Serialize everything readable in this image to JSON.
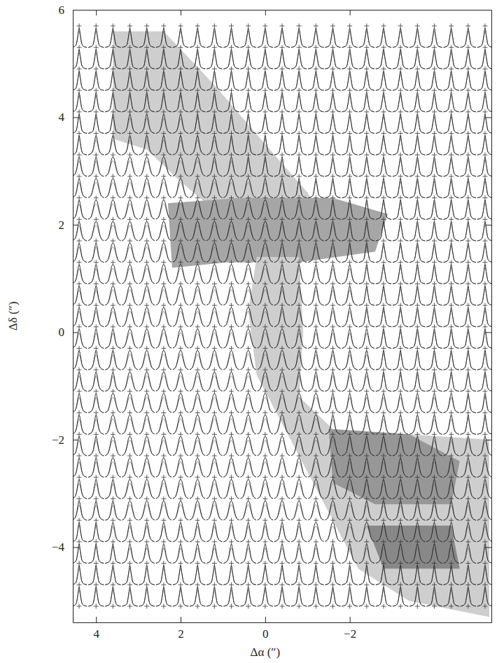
{
  "chart_data": {
    "type": "spectra",
    "x_label": "Δα (″)",
    "y_label": "Δδ (″)",
    "xlim": [
      4.55,
      -5.35
    ],
    "ylim": [
      -5.4,
      6.0
    ],
    "xticks": [
      4,
      2,
      0,
      {
        "value": -2,
        "label": "−2"
      }
    ],
    "yticks": [
      {
        "value": -4,
        "label": "−4"
      },
      {
        "value": -2,
        "label": "−2"
      },
      0,
      2,
      4,
      6
    ],
    "regions": [
      {
        "level": 0.3,
        "points": [
          [
            3.6,
            5.6
          ],
          [
            2.4,
            5.6
          ],
          [
            1.2,
            4.6
          ],
          [
            0.0,
            3.5
          ],
          [
            -1.0,
            2.6
          ],
          [
            -1.4,
            2.0
          ],
          [
            -0.6,
            1.6
          ],
          [
            0.8,
            2.0
          ],
          [
            2.0,
            2.8
          ],
          [
            2.8,
            3.4
          ],
          [
            3.6,
            3.6
          ]
        ]
      },
      {
        "level": 0.45,
        "points": [
          [
            2.3,
            2.4
          ],
          [
            0.6,
            2.5
          ],
          [
            -1.6,
            2.5
          ],
          [
            -2.9,
            2.2
          ],
          [
            -2.6,
            1.5
          ],
          [
            -0.8,
            1.3
          ],
          [
            0.9,
            1.3
          ],
          [
            2.2,
            1.2
          ]
        ]
      },
      {
        "level": 0.3,
        "points": [
          [
            0.2,
            1.4
          ],
          [
            -0.8,
            1.4
          ],
          [
            -0.9,
            0.0
          ],
          [
            -0.8,
            -1.2
          ],
          [
            -1.6,
            -1.8
          ],
          [
            -5.3,
            -2.0
          ],
          [
            -5.3,
            -5.3
          ],
          [
            -3.4,
            -5.0
          ],
          [
            -2.2,
            -4.4
          ],
          [
            -1.4,
            -3.2
          ],
          [
            -0.6,
            -2.0
          ],
          [
            0.2,
            -0.8
          ],
          [
            0.4,
            0.4
          ]
        ]
      },
      {
        "level": 0.5,
        "points": [
          [
            -1.5,
            -1.8
          ],
          [
            -3.4,
            -1.9
          ],
          [
            -4.6,
            -2.4
          ],
          [
            -4.4,
            -3.2
          ],
          [
            -2.6,
            -3.2
          ],
          [
            -1.6,
            -2.8
          ]
        ]
      },
      {
        "level": 0.55,
        "points": [
          [
            -2.4,
            -3.6
          ],
          [
            -4.4,
            -3.6
          ],
          [
            -4.6,
            -4.4
          ],
          [
            -2.8,
            -4.4
          ]
        ]
      }
    ],
    "spectra": {
      "x": [
        4.4,
        4.0,
        3.6,
        3.2,
        2.8,
        2.4,
        2.0,
        1.6,
        1.2,
        0.8,
        0.4,
        0.0,
        -0.4,
        -0.8,
        -1.2,
        -1.6,
        -2.0,
        -2.4,
        -2.8,
        -3.2,
        -3.6,
        -4.0,
        -4.4,
        -4.8,
        -5.2
      ],
      "y": [
        5.7,
        5.3,
        4.9,
        4.5,
        4.1,
        3.7,
        3.3,
        2.9,
        2.5,
        2.1,
        1.7,
        1.3,
        0.9,
        0.5,
        0.1,
        -0.3,
        -0.7,
        -1.1,
        -1.5,
        -1.9,
        -2.3,
        -2.7,
        -3.1,
        -3.5,
        -3.9,
        -4.3,
        -4.7,
        -5.1
      ],
      "profiles": [
        [
          0,
          0.02,
          0.04,
          0.08,
          0.2,
          0.6,
          1,
          0.6,
          0.2,
          0.08,
          0.04,
          0.02,
          0
        ],
        [
          0,
          0.03,
          0.07,
          0.15,
          0.35,
          0.75,
          1,
          0.75,
          0.35,
          0.15,
          0.07,
          0.03,
          0
        ],
        [
          0.02,
          0.05,
          0.12,
          0.3,
          0.6,
          0.9,
          1,
          0.9,
          0.6,
          0.3,
          0.12,
          0.05,
          0.02
        ]
      ],
      "model_profiles": [
        [
          0,
          0.01,
          0.03,
          0.07,
          0.2,
          0.55,
          0.85,
          0.55,
          0.2,
          0.07,
          0.03,
          0.01,
          0
        ],
        [
          0,
          0.02,
          0.05,
          0.12,
          0.3,
          0.6,
          0.8,
          0.6,
          0.3,
          0.12,
          0.05,
          0.02,
          0
        ],
        [
          0.01,
          0.04,
          0.1,
          0.25,
          0.5,
          0.72,
          0.8,
          0.72,
          0.5,
          0.25,
          0.1,
          0.04,
          0.01
        ]
      ],
      "grid": [
        [
          null,
          null,
          null,
          null,
          null,
          null,
          null,
          null,
          null,
          null,
          null,
          null,
          null,
          null,
          null,
          null,
          null,
          null,
          null,
          null,
          null,
          null,
          null,
          null,
          null
        ],
        [
          0,
          0,
          0,
          0,
          0,
          0,
          0,
          0,
          0,
          0,
          0,
          0,
          0,
          0,
          0,
          0,
          0,
          0,
          0,
          0,
          0,
          0,
          0,
          0,
          0
        ],
        [
          0,
          0,
          0,
          0,
          0,
          0,
          0,
          0,
          0,
          0,
          0,
          0,
          0,
          0,
          0,
          0,
          0,
          0,
          0,
          0,
          0,
          0,
          0,
          0,
          0
        ],
        [
          0,
          0,
          0,
          0,
          0,
          0,
          0,
          0,
          0,
          0,
          0,
          0,
          0,
          0,
          0,
          0,
          0,
          0,
          0,
          0,
          0,
          0,
          0,
          0,
          0
        ],
        [
          0,
          0,
          0,
          0,
          0,
          0,
          0,
          0,
          0,
          0,
          0,
          0,
          0,
          0,
          0,
          0,
          0,
          0,
          0,
          0,
          0,
          0,
          0,
          0,
          0
        ],
        [
          0,
          0,
          0,
          1,
          1,
          1,
          1,
          0,
          0,
          0,
          0,
          0,
          0,
          0,
          0,
          0,
          0,
          0,
          0,
          0,
          0,
          0,
          0,
          0,
          0
        ],
        [
          0,
          1,
          1,
          1,
          1,
          1,
          1,
          1,
          1,
          0,
          0,
          0,
          0,
          0,
          0,
          0,
          0,
          0,
          0,
          0,
          0,
          0,
          0,
          0,
          0
        ],
        [
          1,
          1,
          2,
          2,
          2,
          2,
          2,
          2,
          1,
          1,
          0,
          0,
          0,
          0,
          0,
          0,
          0,
          0,
          0,
          0,
          0,
          0,
          0,
          0,
          0
        ],
        [
          1,
          2,
          2,
          2,
          2,
          2,
          2,
          2,
          2,
          2,
          2,
          1,
          1,
          0,
          0,
          0,
          0,
          0,
          0,
          0,
          0,
          0,
          0,
          0,
          0
        ],
        [
          1,
          2,
          2,
          2,
          2,
          2,
          2,
          2,
          2,
          2,
          2,
          2,
          1,
          1,
          1,
          0,
          0,
          0,
          0,
          0,
          0,
          0,
          0,
          0,
          0
        ],
        [
          1,
          2,
          2,
          2,
          2,
          2,
          2,
          2,
          2,
          2,
          2,
          2,
          1,
          1,
          1,
          1,
          0,
          0,
          0,
          0,
          0,
          0,
          0,
          0,
          0
        ],
        [
          1,
          1,
          2,
          2,
          2,
          2,
          2,
          2,
          2,
          2,
          2,
          2,
          1,
          1,
          1,
          1,
          0,
          0,
          0,
          0,
          0,
          0,
          0,
          0,
          0
        ],
        [
          1,
          1,
          2,
          2,
          2,
          2,
          2,
          2,
          2,
          2,
          2,
          2,
          1,
          1,
          1,
          1,
          1,
          0,
          0,
          0,
          0,
          0,
          0,
          0,
          0
        ],
        [
          1,
          1,
          2,
          2,
          2,
          2,
          2,
          2,
          2,
          2,
          2,
          2,
          1,
          1,
          1,
          1,
          1,
          0,
          0,
          0,
          0,
          0,
          0,
          0,
          0
        ],
        [
          1,
          1,
          2,
          2,
          2,
          2,
          2,
          2,
          2,
          2,
          2,
          2,
          1,
          1,
          1,
          1,
          1,
          0,
          0,
          0,
          0,
          0,
          0,
          0,
          0
        ],
        [
          1,
          1,
          1,
          2,
          2,
          2,
          2,
          2,
          2,
          2,
          2,
          2,
          2,
          1,
          1,
          1,
          1,
          1,
          0,
          0,
          0,
          0,
          0,
          0,
          0
        ],
        [
          1,
          1,
          1,
          2,
          2,
          2,
          2,
          2,
          2,
          2,
          2,
          2,
          2,
          1,
          1,
          1,
          1,
          1,
          0,
          0,
          0,
          0,
          0,
          0,
          0
        ],
        [
          1,
          1,
          1,
          2,
          2,
          2,
          2,
          2,
          2,
          2,
          2,
          2,
          2,
          1,
          1,
          1,
          1,
          1,
          0,
          0,
          0,
          0,
          0,
          0,
          0
        ],
        [
          1,
          1,
          2,
          2,
          2,
          2,
          2,
          2,
          2,
          2,
          2,
          2,
          2,
          2,
          2,
          1,
          1,
          1,
          1,
          1,
          1,
          1,
          1,
          0,
          0
        ],
        [
          1,
          1,
          2,
          2,
          2,
          2,
          2,
          2,
          2,
          2,
          2,
          2,
          2,
          2,
          2,
          1,
          1,
          1,
          1,
          1,
          1,
          1,
          1,
          0,
          0
        ],
        [
          1,
          1,
          2,
          2,
          2,
          2,
          2,
          2,
          2,
          2,
          2,
          2,
          2,
          2,
          2,
          2,
          1,
          1,
          1,
          1,
          1,
          1,
          1,
          1,
          1
        ],
        [
          1,
          1,
          2,
          2,
          2,
          2,
          2,
          2,
          2,
          2,
          2,
          2,
          2,
          2,
          2,
          2,
          1,
          1,
          1,
          1,
          1,
          1,
          1,
          1,
          1
        ],
        [
          1,
          1,
          1,
          2,
          2,
          2,
          2,
          2,
          2,
          2,
          2,
          2,
          2,
          2,
          2,
          2,
          2,
          1,
          1,
          1,
          1,
          1,
          1,
          1,
          1
        ],
        [
          1,
          1,
          1,
          2,
          2,
          2,
          2,
          2,
          2,
          2,
          2,
          2,
          2,
          2,
          2,
          2,
          2,
          1,
          1,
          1,
          1,
          1,
          1,
          1,
          1
        ],
        [
          0,
          0,
          1,
          1,
          1,
          1,
          1,
          1,
          1,
          1,
          1,
          1,
          1,
          1,
          2,
          2,
          2,
          2,
          1,
          1,
          1,
          1,
          1,
          1,
          1
        ],
        [
          0,
          0,
          0,
          1,
          1,
          1,
          1,
          1,
          1,
          1,
          1,
          1,
          1,
          1,
          1,
          1,
          1,
          1,
          1,
          1,
          1,
          1,
          1,
          1,
          0
        ],
        [
          0,
          0,
          0,
          0,
          0,
          0,
          0,
          0,
          0,
          0,
          0,
          0,
          0,
          0,
          0,
          0,
          0,
          0,
          0,
          0,
          0,
          0,
          0,
          0,
          0
        ],
        [
          0,
          0,
          0,
          0,
          0,
          0,
          0,
          0,
          0,
          0,
          0,
          0,
          0,
          0,
          0,
          0,
          0,
          0,
          0,
          0,
          0,
          0,
          0,
          0,
          0
        ]
      ]
    }
  }
}
